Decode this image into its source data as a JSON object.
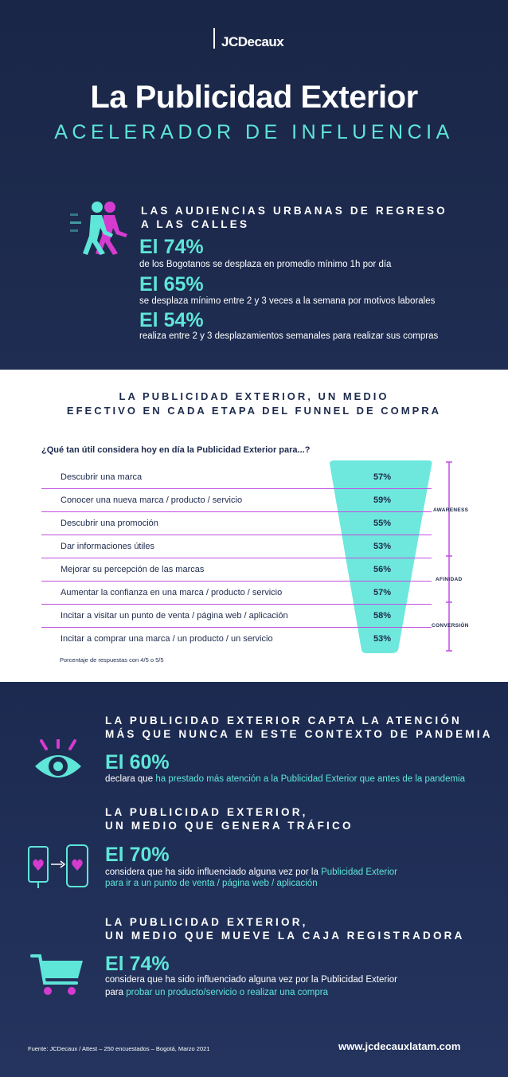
{
  "logo": {
    "text": "JCDecaux"
  },
  "header": {
    "title": "La Publicidad Exterior",
    "subtitle": "ACELERADOR DE INFLUENCIA"
  },
  "audiences": {
    "heading_line1": "LAS AUDIENCIAS URBANAS DE REGRESO",
    "heading_line2": "A LAS CALLES",
    "stats": [
      {
        "value": "El 74%",
        "text": "de los Bogotanos se desplaza en promedio mínimo 1h por día"
      },
      {
        "value": "El 65%",
        "text": "se desplaza mínimo entre 2 y 3 veces a la semana por motivos laborales"
      },
      {
        "value": "El 54%",
        "text": "realiza entre 2 y 3 desplazamientos semanales para realizar sus compras"
      }
    ]
  },
  "funnel": {
    "heading_line1": "LA PUBLICIDAD EXTERIOR, UN MEDIO",
    "heading_line2": "EFECTIVO EN CADA ETAPA DEL FUNNEL DE COMPRA",
    "question": "¿Qué tan útil considera hoy en día la Publicidad Exterior para...?",
    "rows": [
      {
        "label": "Descubrir una marca",
        "value": "57%"
      },
      {
        "label": "Conocer una nueva marca / producto / servicio",
        "value": "59%"
      },
      {
        "label": "Descubrir una promoción",
        "value": "55%"
      },
      {
        "label": "Dar informaciones útiles",
        "value": "53%"
      },
      {
        "label": "Mejorar su percepción de las marcas",
        "value": "56%"
      },
      {
        "label": "Aumentar la confianza en una marca / producto / servicio",
        "value": "57%"
      },
      {
        "label": "Incitar a visitar un punto de venta / página web / aplicación",
        "value": "58%"
      },
      {
        "label": "Incitar a comprar una marca / un producto / un servicio",
        "value": "53%"
      }
    ],
    "stages": {
      "awareness": "AWARENESS",
      "afinidad": "AFINIDAD",
      "conversion": "CONVERSIÓN"
    },
    "note": "Porcentaje de respuestas con 4/5 o 5/5",
    "colors": {
      "funnel": "#6ee8dc",
      "accent": "#c04fe0"
    }
  },
  "attention": {
    "heading_line1": "LA PUBLICIDAD EXTERIOR CAPTA LA ATENCIÓN",
    "heading_line2": "MÁS QUE NUNCA EN ESTE CONTEXTO DE PANDEMIA",
    "value": "El 60%",
    "text_plain": "declara que",
    "text_teal": "ha prestado más atención a la Publicidad Exterior que antes de la pandemia",
    "icon": "eye-icon"
  },
  "traffic": {
    "heading_line1": "LA PUBLICIDAD EXTERIOR,",
    "heading_line2": "UN MEDIO QUE GENERA TRÁFICO",
    "value": "El 70%",
    "line1_plain": "considera que ha sido influenciado alguna vez por la",
    "line1_teal": "Publicidad Exterior",
    "line2_teal": "para ir a un punto de venta / página web / aplicación",
    "icon": "screen-to-phone-icon"
  },
  "cash": {
    "heading_line1": "LA PUBLICIDAD EXTERIOR,",
    "heading_line2": "UN MEDIO QUE MUEVE LA CAJA REGISTRADORA",
    "value": "El 74%",
    "line1": "considera que ha sido influenciado alguna vez por la Publicidad Exterior",
    "line2_plain": "para",
    "line2_teal": "probar un producto/servicio o realizar una compra",
    "icon": "shopping-cart-icon"
  },
  "footer": {
    "source": "Fuente: JCDecaux / Attest – 250 encuestados – Bogotá, Marzo 2021",
    "url": "www.jcdecauxlatam.com"
  }
}
